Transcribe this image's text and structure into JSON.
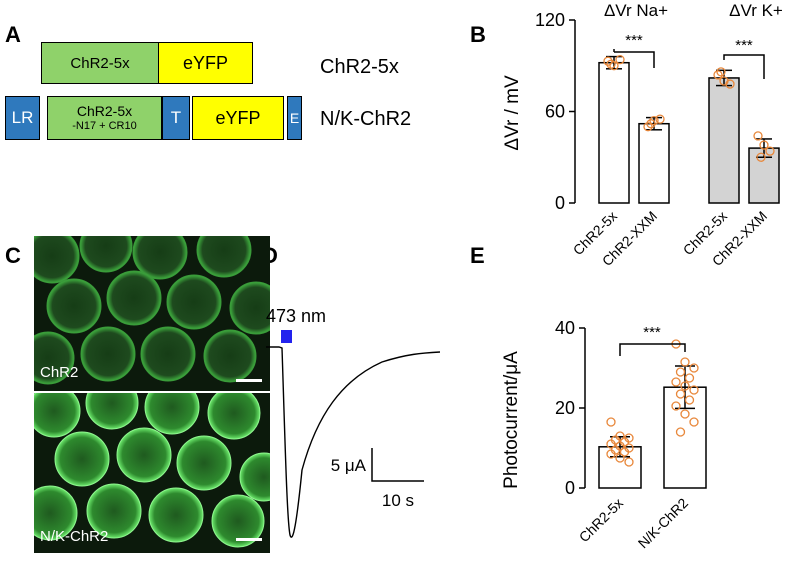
{
  "panels": {
    "a": "A",
    "b": "B",
    "c": "C",
    "d": "D",
    "e": "E"
  },
  "panel_a": {
    "construct1": {
      "chr2": "ChR2-5x",
      "eyfp": "eYFP",
      "name": "ChR2-5x"
    },
    "construct2": {
      "lr": "LR",
      "chr2_line1": "ChR2-5x",
      "chr2_line2": "-N17 + CR10",
      "t": "T",
      "eyfp": "eYFP",
      "e": "E",
      "name": "N/K-ChR2"
    }
  },
  "panel_c": {
    "top_label": "ChR2",
    "bottom_label": "N/K-ChR2"
  },
  "panel_d": {
    "stim_label": "473 nm",
    "scale_y": "5 μA",
    "scale_x": "10 s"
  },
  "chart_data": [
    {
      "type": "bar",
      "panel": "B",
      "ylabel": "ΔVr / mV",
      "ylim": [
        0,
        120
      ],
      "yticks": [
        "0",
        "60",
        "120"
      ],
      "groups": [
        "ΔVr Na+",
        "ΔVr K+"
      ],
      "categories": [
        "ChR2-5x",
        "ChR2-XXM",
        "ChR2-5x",
        "ChR2-XXM"
      ],
      "values": [
        92,
        52,
        82,
        36
      ],
      "errors": [
        4,
        4,
        5,
        6
      ],
      "bar_colors": [
        "#ffffff",
        "#ffffff",
        "#d3d3d3",
        "#d3d3d3"
      ],
      "points": [
        [
          93,
          90,
          94,
          91
        ],
        [
          50,
          54,
          55,
          52
        ],
        [
          84,
          80,
          78,
          86
        ],
        [
          44,
          38,
          34,
          30
        ]
      ],
      "significance": [
        "***",
        "***"
      ]
    },
    {
      "type": "bar",
      "panel": "E",
      "ylabel": "Photocurrent/μA",
      "ylim": [
        0,
        40
      ],
      "yticks": [
        "0",
        "20",
        "40"
      ],
      "categories": [
        "ChR2-5x",
        "N/K-ChR2"
      ],
      "values": [
        10.3,
        25.2
      ],
      "errors": [
        2.5,
        5.3
      ],
      "points": [
        [
          16.5,
          13,
          12.5,
          12,
          11.5,
          11,
          10.5,
          10,
          9.5,
          9,
          8.5,
          7.5,
          6.5
        ],
        [
          36,
          31.5,
          30,
          29,
          27.5,
          26.5,
          25.5,
          24.5,
          23.5,
          22,
          20.5,
          18.5,
          16.5,
          14
        ]
      ],
      "significance": "***"
    }
  ],
  "colors": {
    "point": "#e8873a",
    "stim": "#2222ee",
    "fluor": "#3fd23f"
  }
}
